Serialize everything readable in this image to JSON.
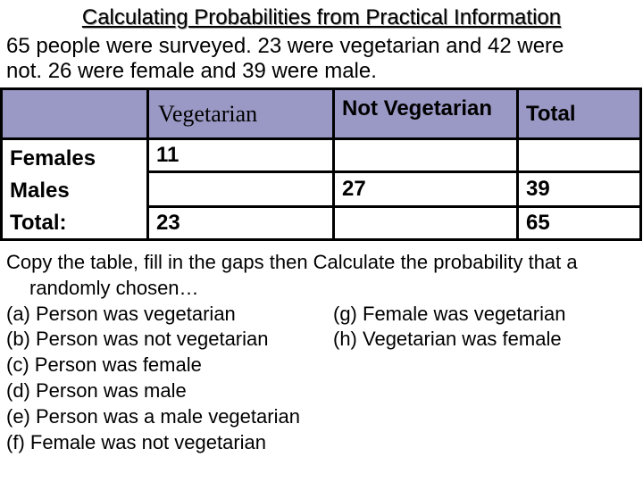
{
  "title": "Calculating Probabilities from Practical Information",
  "intro": {
    "line1": "65 people were surveyed.  23 were vegetarian and 42 were",
    "line2": "not.  26 were female and 39 were male."
  },
  "table": {
    "headers": [
      "",
      "Vegetarian",
      "Not Vegetarian",
      "Total"
    ],
    "rows": [
      {
        "label": "Females",
        "vegetarian": "11",
        "not_vegetarian": "",
        "total": ""
      },
      {
        "label": "Males",
        "vegetarian": "",
        "not_vegetarian": "27",
        "total": "39"
      },
      {
        "label": "Total:",
        "vegetarian": "23",
        "not_vegetarian": "",
        "total": "65"
      }
    ],
    "header_color": "#9a98c4"
  },
  "instructions": {
    "line1": "Copy the table, fill in the gaps then Calculate the probability that a",
    "line2": "randomly chosen…"
  },
  "questions": {
    "a": "(a) Person was vegetarian",
    "b": "(b) Person was not vegetarian",
    "c": "(c) Person was female",
    "d": "(d) Person was male",
    "e": "(e) Person was a male vegetarian",
    "f": "(f)  Female was not vegetarian",
    "g": "(g) Female was vegetarian",
    "h": "(h) Vegetarian was female"
  }
}
